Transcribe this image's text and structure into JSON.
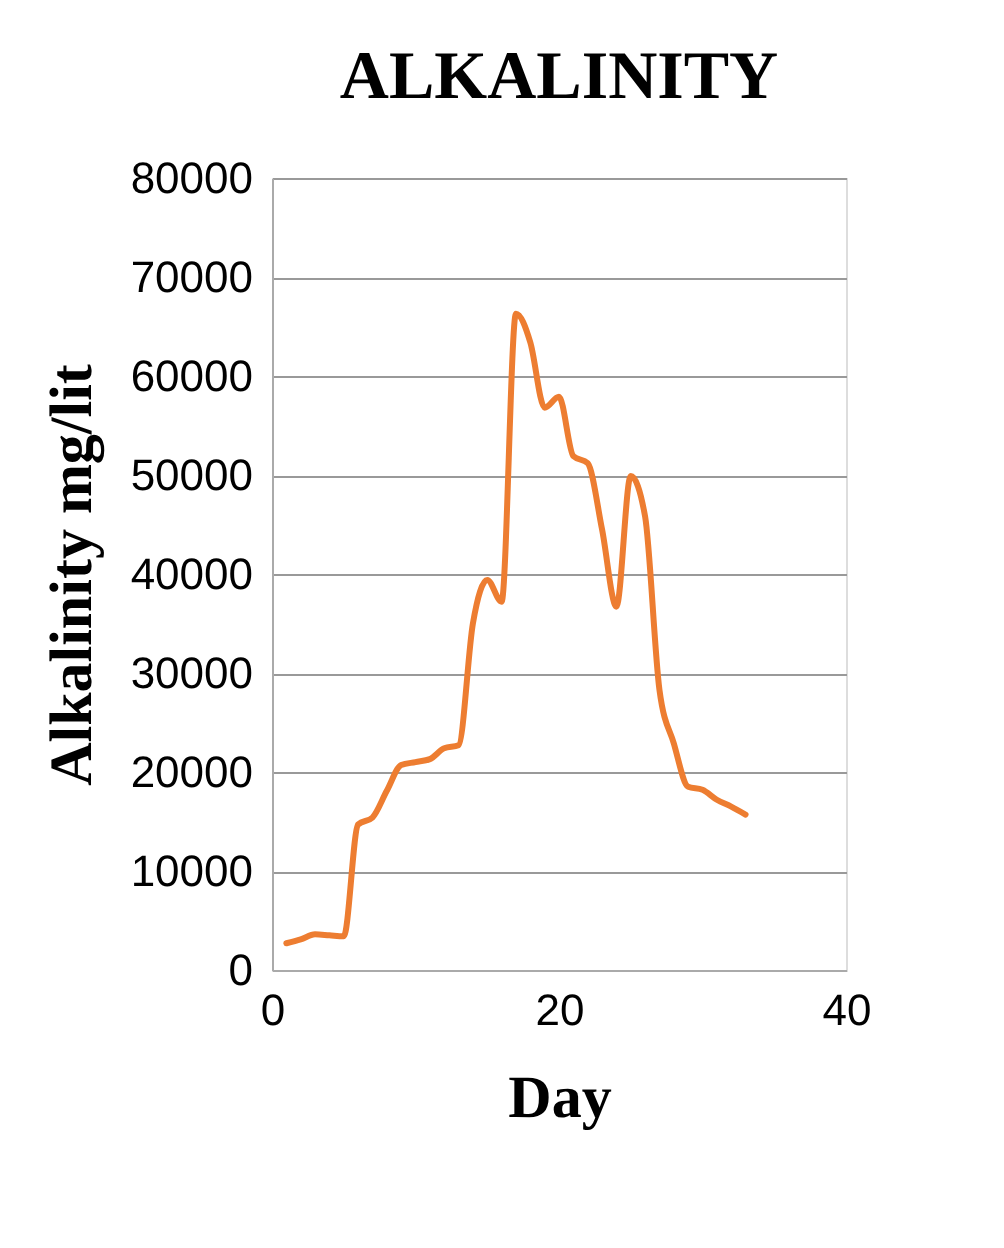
{
  "chart_data": {
    "type": "line",
    "title": "ALKALINITY",
    "xlabel": "Day",
    "ylabel": "Alkalinity mg/lit",
    "x": [
      1,
      2,
      3,
      4,
      5,
      6,
      7,
      8,
      9,
      10,
      11,
      12,
      13,
      14,
      15,
      16,
      17,
      18,
      19,
      20,
      21,
      22,
      23,
      24,
      25,
      26,
      27,
      28,
      29,
      30,
      31,
      32,
      33
    ],
    "series": [
      {
        "color": "#ed7d31",
        "values": [
          2700,
          3100,
          3600,
          3500,
          3400,
          14700,
          15400,
          18100,
          20700,
          21000,
          21300,
          22400,
          22700,
          35000,
          39400,
          37200,
          66300,
          63400,
          56800,
          57900,
          51900,
          51200,
          44500,
          36700,
          49900,
          45800,
          28300,
          22900,
          18500,
          18200,
          17200,
          16500,
          15700
        ]
      }
    ],
    "xlim": [
      0,
      40
    ],
    "xticks": [
      0,
      20,
      40
    ],
    "ylim": [
      0,
      80000
    ],
    "yticks": [
      0,
      10000,
      20000,
      30000,
      40000,
      50000,
      60000,
      70000,
      80000
    ],
    "grid": "y",
    "marker": "none",
    "line_style": "solid"
  }
}
